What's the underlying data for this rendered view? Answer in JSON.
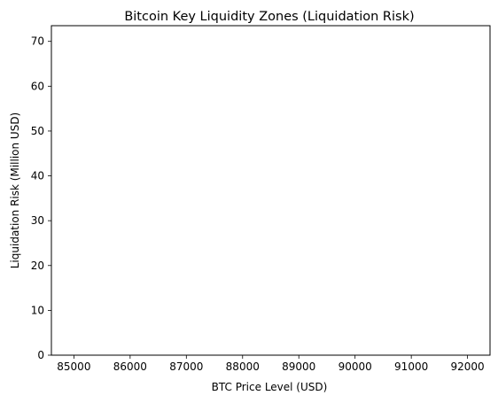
{
  "chart_data": {
    "type": "bar",
    "title": "Bitcoin Key Liquidity Zones (Liquidation Risk)",
    "xlabel": "BTC Price Level (USD)",
    "ylabel": "Liquidation Risk (Million USD)",
    "xlim": [
      84600,
      92400
    ],
    "ylim": [
      0,
      73.5
    ],
    "xticks": [
      85000,
      86000,
      87000,
      88000,
      89000,
      90000,
      91000,
      92000
    ],
    "yticks": [
      0,
      10,
      20,
      30,
      40,
      50,
      60,
      70
    ],
    "grid": false,
    "series": [
      {
        "x": [],
        "values": []
      }
    ]
  }
}
